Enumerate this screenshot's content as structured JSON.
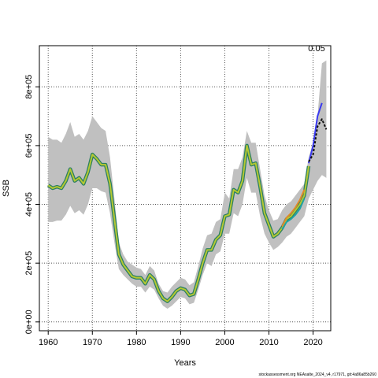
{
  "chart_data": {
    "type": "line",
    "xlabel": "Years",
    "ylabel": "SSB",
    "xlim": [
      1958,
      2024
    ],
    "ylim": [
      -30000,
      940000
    ],
    "xticks": [
      1960,
      1970,
      1980,
      1990,
      2000,
      2010,
      2020
    ],
    "yticks": [
      0,
      200000,
      400000,
      600000,
      800000
    ],
    "ytick_labels": [
      "0e+00",
      "2e+05",
      "4e+05",
      "6e+05",
      "8e+05"
    ],
    "grid": true,
    "annotation": "0.05",
    "footer": "stockassessment.org NEAsalte_2024_v4, r17971, git:4a86a85b260",
    "colors": {
      "band": "#c0c0c0",
      "main_outer": "#2a7f62",
      "main_inner": "#b5c832",
      "line_blue": "#3a3af0",
      "line_black": "#111111",
      "line_teal": "#1fa3a3",
      "line_orange": "#e08a2a"
    },
    "band": {
      "x": [
        1960,
        1961,
        1962,
        1963,
        1964,
        1965,
        1966,
        1967,
        1968,
        1969,
        1970,
        1971,
        1972,
        1973,
        1974,
        1975,
        1976,
        1977,
        1978,
        1979,
        1980,
        1981,
        1982,
        1983,
        1984,
        1985,
        1986,
        1987,
        1988,
        1989,
        1990,
        1991,
        1992,
        1993,
        1994,
        1995,
        1996,
        1997,
        1998,
        1999,
        2000,
        2001,
        2002,
        2003,
        2004,
        2005,
        2006,
        2007,
        2008,
        2009,
        2010,
        2011,
        2012,
        2013,
        2014,
        2015,
        2016,
        2017,
        2018,
        2019,
        2020,
        2021,
        2022,
        2023
      ],
      "lower": [
        340000,
        340000,
        345000,
        345000,
        365000,
        395000,
        370000,
        380000,
        365000,
        400000,
        455000,
        455000,
        445000,
        440000,
        370000,
        270000,
        180000,
        160000,
        145000,
        130000,
        120000,
        120000,
        100000,
        120000,
        110000,
        80000,
        55000,
        45000,
        55000,
        70000,
        85000,
        80000,
        60000,
        65000,
        110000,
        160000,
        200000,
        190000,
        230000,
        240000,
        300000,
        300000,
        370000,
        360000,
        400000,
        490000,
        440000,
        440000,
        360000,
        300000,
        270000,
        245000,
        255000,
        270000,
        290000,
        300000,
        320000,
        340000,
        360000,
        420000,
        450000,
        480000,
        500000,
        490000
      ],
      "upper": [
        630000,
        620000,
        620000,
        610000,
        640000,
        680000,
        630000,
        640000,
        620000,
        650000,
        700000,
        680000,
        660000,
        650000,
        560000,
        420000,
        270000,
        230000,
        205000,
        195000,
        185000,
        180000,
        160000,
        190000,
        175000,
        130000,
        105000,
        100000,
        120000,
        135000,
        150000,
        145000,
        125000,
        135000,
        190000,
        250000,
        295000,
        300000,
        340000,
        350000,
        440000,
        420000,
        520000,
        520000,
        560000,
        650000,
        610000,
        610000,
        520000,
        430000,
        380000,
        345000,
        350000,
        380000,
        400000,
        410000,
        430000,
        450000,
        470000,
        560000,
        610000,
        700000,
        880000,
        890000
      ]
    },
    "series": [
      {
        "color_key": "main",
        "x": [
          1960,
          1961,
          1962,
          1963,
          1964,
          1965,
          1966,
          1967,
          1968,
          1969,
          1970,
          1971,
          1972,
          1973,
          1974,
          1975,
          1976,
          1977,
          1978,
          1979,
          1980,
          1981,
          1982,
          1983,
          1984,
          1985,
          1986,
          1987,
          1988,
          1989,
          1990,
          1991,
          1992,
          1993,
          1994,
          1995,
          1996,
          1997,
          1998,
          1999,
          2000,
          2001,
          2002,
          2003,
          2004,
          2005,
          2006,
          2007,
          2008,
          2009,
          2010,
          2011,
          2012,
          2013,
          2014,
          2015,
          2016,
          2017,
          2018,
          2019
        ],
        "values": [
          465000,
          455000,
          460000,
          455000,
          480000,
          520000,
          480000,
          490000,
          470000,
          510000,
          570000,
          555000,
          535000,
          535000,
          470000,
          350000,
          230000,
          195000,
          175000,
          155000,
          150000,
          150000,
          130000,
          160000,
          145000,
          105000,
          80000,
          70000,
          85000,
          105000,
          115000,
          110000,
          90000,
          95000,
          145000,
          200000,
          245000,
          245000,
          280000,
          295000,
          360000,
          365000,
          450000,
          440000,
          480000,
          600000,
          535000,
          540000,
          460000,
          370000,
          330000,
          290000,
          300000,
          320000,
          350000,
          360000,
          380000,
          400000,
          430000,
          530000
        ]
      },
      {
        "color_key": "line_teal",
        "x": [
          2013,
          2014,
          2015,
          2016,
          2017,
          2018
        ],
        "values": [
          315000,
          340000,
          350000,
          365000,
          385000,
          420000
        ]
      },
      {
        "color_key": "line_orange",
        "x": [
          2013,
          2014,
          2015,
          2016,
          2017,
          2018
        ],
        "values": [
          325000,
          355000,
          370000,
          390000,
          415000,
          450000
        ]
      },
      {
        "color_key": "line_blue",
        "x": [
          2019,
          2020,
          2021,
          2022
        ],
        "values": [
          540000,
          600000,
          700000,
          745000
        ]
      },
      {
        "color_key": "line_black",
        "dashed": true,
        "x": [
          2019,
          2020,
          2021,
          2022,
          2023
        ],
        "values": [
          545000,
          570000,
          665000,
          690000,
          655000
        ]
      }
    ]
  }
}
